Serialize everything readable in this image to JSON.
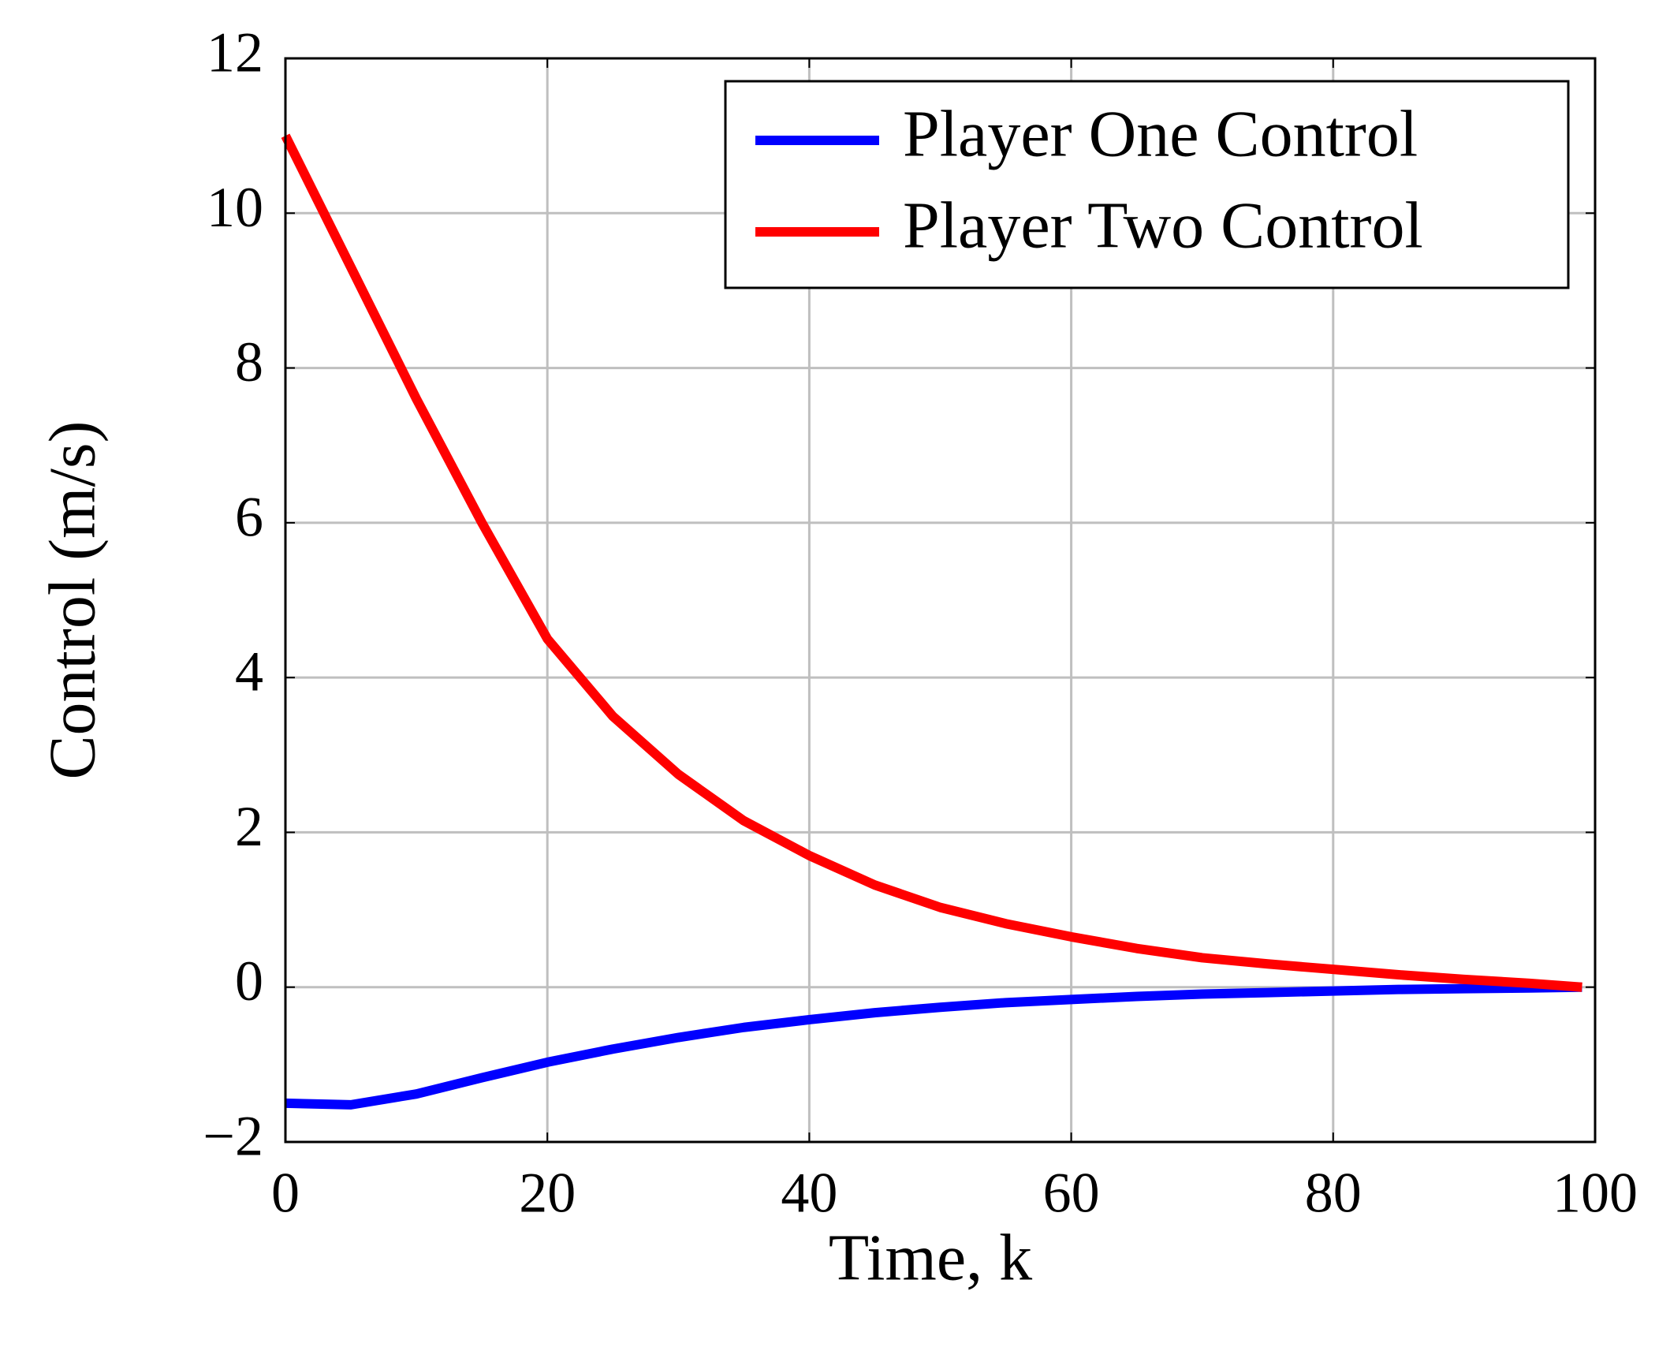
{
  "chart_data": {
    "type": "line",
    "xlabel": "Time, k",
    "ylabel": "Control (m/s)",
    "x": [
      0,
      5,
      10,
      15,
      20,
      25,
      30,
      35,
      40,
      45,
      50,
      55,
      60,
      65,
      70,
      75,
      80,
      85,
      90,
      95,
      99
    ],
    "series": [
      {
        "name": "Player One Control",
        "color": "#0000ff",
        "values": [
          -1.5,
          -1.52,
          -1.38,
          -1.17,
          -0.97,
          -0.8,
          -0.65,
          -0.52,
          -0.42,
          -0.33,
          -0.26,
          -0.2,
          -0.16,
          -0.12,
          -0.09,
          -0.07,
          -0.05,
          -0.03,
          -0.02,
          -0.01,
          0
        ]
      },
      {
        "name": "Player Two Control",
        "color": "#ff0000",
        "values": [
          11,
          9.3,
          7.6,
          6.0,
          4.5,
          3.5,
          2.75,
          2.15,
          1.7,
          1.32,
          1.03,
          0.82,
          0.65,
          0.5,
          0.38,
          0.3,
          0.23,
          0.16,
          0.1,
          0.05,
          0
        ]
      }
    ],
    "xlim": [
      0,
      100
    ],
    "xticks": [
      0,
      20,
      40,
      60,
      80,
      100
    ],
    "ylim": [
      -2,
      12
    ],
    "yticks": [
      {
        "value": -2,
        "label": "−2"
      },
      0,
      2,
      4,
      6,
      8,
      10,
      12
    ],
    "grid": true,
    "legend": "upper right"
  }
}
